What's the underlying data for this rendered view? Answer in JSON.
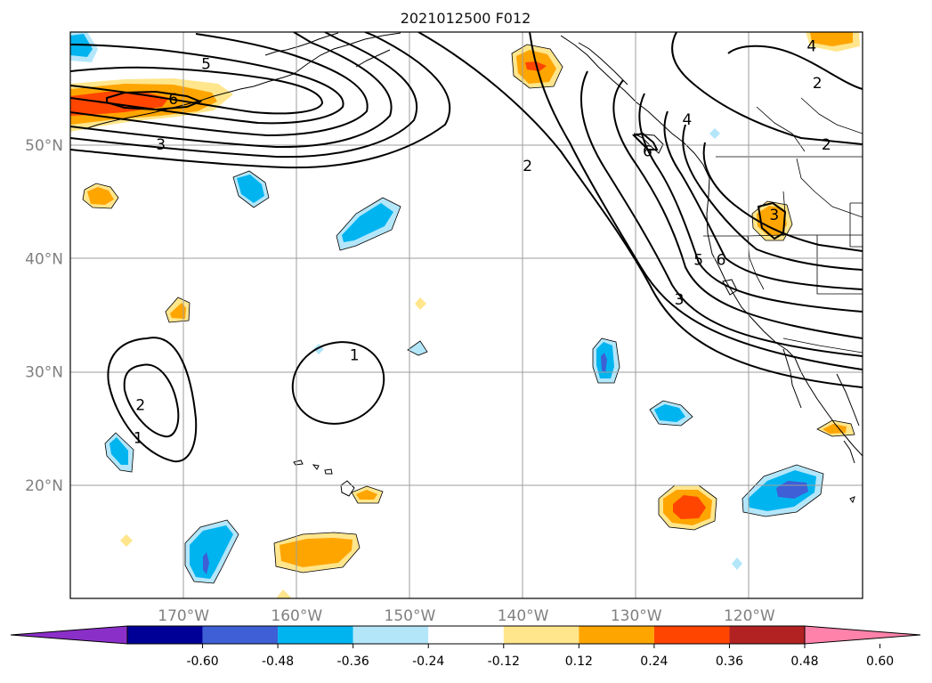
{
  "title": "2021012500 F012",
  "map": {
    "lon_range": [
      -180,
      -110
    ],
    "lat_range": [
      10,
      60
    ],
    "grid": true,
    "lat_ticks": [
      {
        "value": 50,
        "label": "50°N"
      },
      {
        "value": 40,
        "label": "40°N"
      },
      {
        "value": 30,
        "label": "30°N"
      },
      {
        "value": 20,
        "label": "20°N"
      }
    ],
    "lon_ticks": [
      {
        "value": -170,
        "label": "170°W"
      },
      {
        "value": -160,
        "label": "160°W"
      },
      {
        "value": -150,
        "label": "150°W"
      },
      {
        "value": -140,
        "label": "140°W"
      },
      {
        "value": -130,
        "label": "130°W"
      },
      {
        "value": -120,
        "label": "120°W"
      }
    ],
    "contour_labels": [
      {
        "text": "5",
        "lon": -168,
        "lat": 57.2
      },
      {
        "text": "6",
        "lon": -170.9,
        "lat": 54.1
      },
      {
        "text": "3",
        "lon": -172,
        "lat": 50.1
      },
      {
        "text": "4",
        "lon": -114.5,
        "lat": 58.8
      },
      {
        "text": "2",
        "lon": -114,
        "lat": 55.5
      },
      {
        "text": "2",
        "lon": -113.2,
        "lat": 50.1
      },
      {
        "text": "2",
        "lon": -139.6,
        "lat": 48.2
      },
      {
        "text": "6",
        "lon": -129,
        "lat": 49.5
      },
      {
        "text": "4",
        "lon": -125.5,
        "lat": 52.3
      },
      {
        "text": "3",
        "lon": -117.8,
        "lat": 43.9
      },
      {
        "text": "5",
        "lon": -124.5,
        "lat": 39.9
      },
      {
        "text": "6",
        "lon": -122.5,
        "lat": 39.9
      },
      {
        "text": "3",
        "lon": -126.2,
        "lat": 36.4
      },
      {
        "text": "2",
        "lon": -173.8,
        "lat": 27.1
      },
      {
        "text": "1",
        "lon": -174,
        "lat": 24.2
      },
      {
        "text": "1",
        "lon": -154.9,
        "lat": 31.5
      }
    ]
  },
  "colorbar": {
    "ticks": [
      "-0.60",
      "-0.48",
      "-0.36",
      "-0.24",
      "-0.12",
      "0.12",
      "0.24",
      "0.36",
      "0.48",
      "0.60"
    ],
    "colors": [
      "#8b2fc9",
      "#000096",
      "#3e5fd6",
      "#00b4f0",
      "#b4e6fa",
      "#ffffff",
      "#ffe68c",
      "#ffa500",
      "#ff4500",
      "#b22222",
      "#ff82aa"
    ]
  }
}
